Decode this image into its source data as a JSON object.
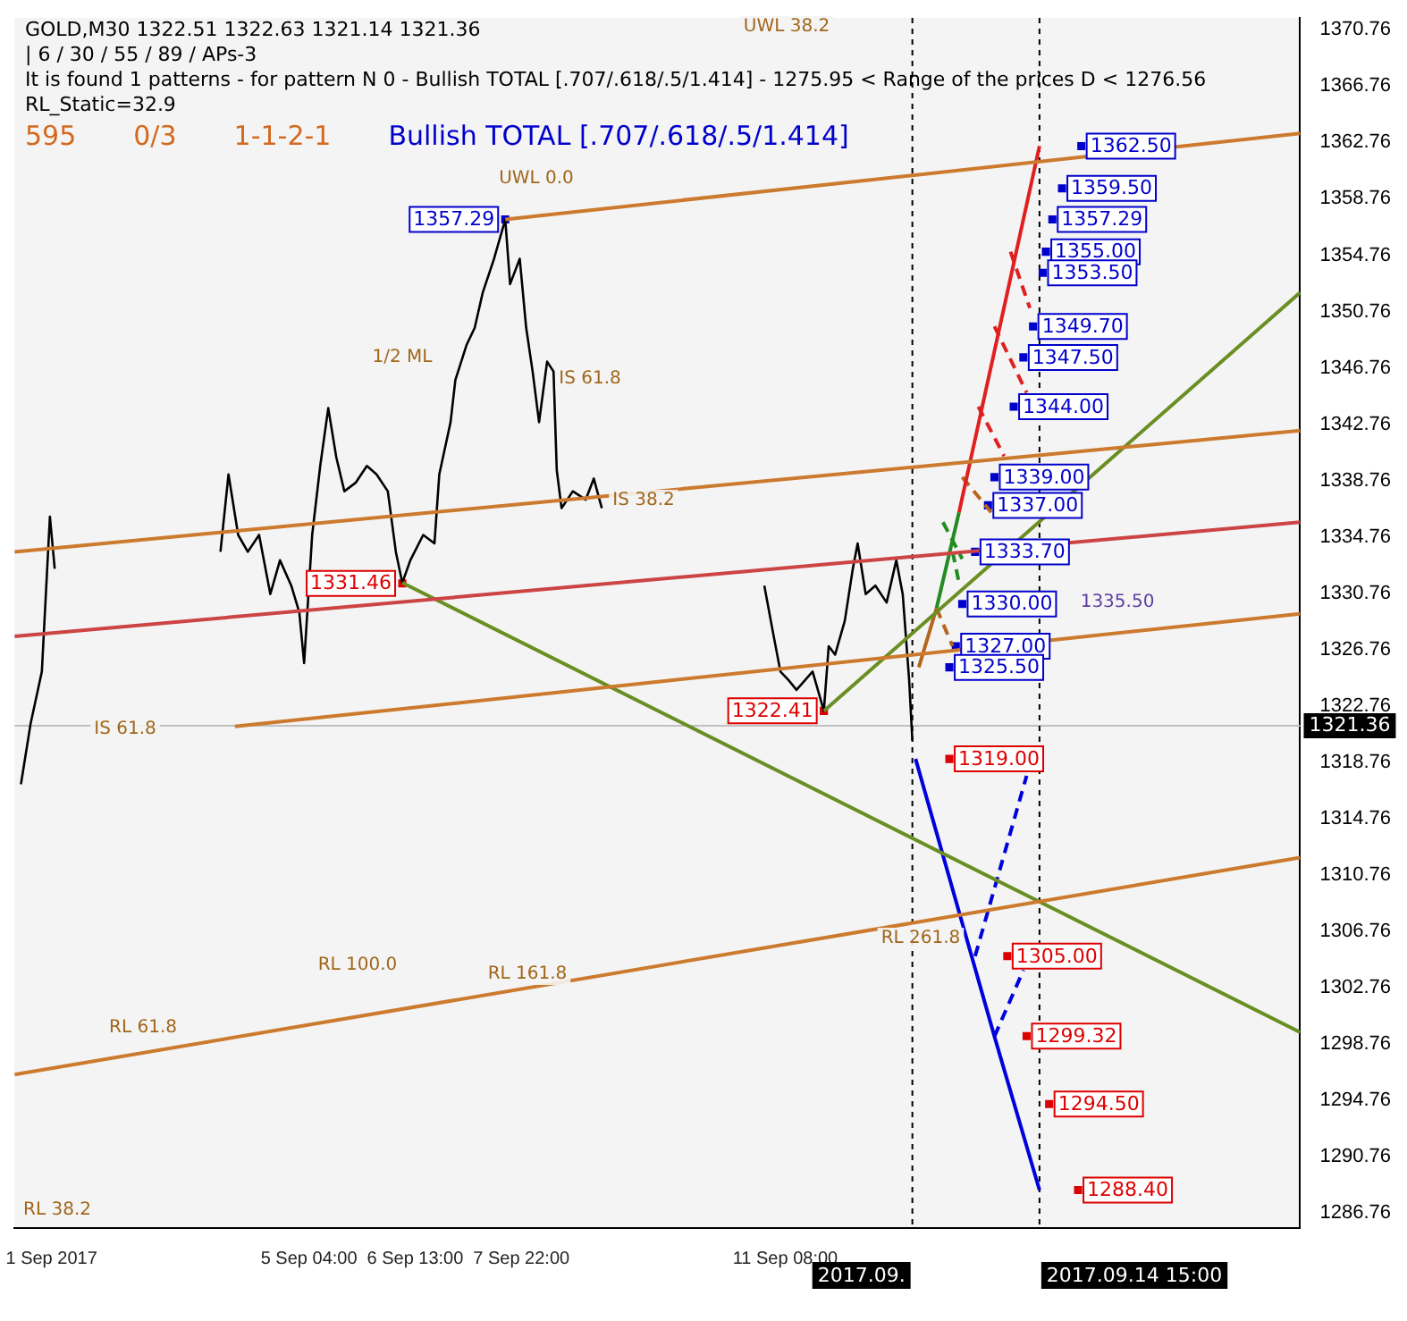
{
  "chart_data": {
    "type": "line",
    "title": "GOLD,M30  1322.51 1322.63 1321.14 1321.36",
    "annotations": [
      "| 6 / 30 / 55 / 89 / APs-3",
      "It is found 1 patterns  -  for pattern N 0 - Bullish TOTAL [.707/.618/.5/1.414] - 1275.95 < Range of the prices D < 1276.56",
      "RL_Static=32.9",
      "595",
      "0/3",
      "1-1-2-1",
      "Bullish TOTAL [.707/.618/.5/1.414]",
      "UWL 0.0",
      "UWL 38.2",
      "1/2 ML",
      "IS 61.8",
      "IS 38.2",
      "IS 61.8",
      "RL 61.8",
      "RL 100.0",
      "RL 161.8",
      "RL 261.8",
      "RL 38.2",
      "1335.50"
    ],
    "xlim": [
      "2017-09-01T08:30",
      "2017-09-18T00:00"
    ],
    "xticks": [
      {
        "value": "2017-09-01T20:00",
        "label": "1 Sep 2017"
      },
      {
        "value": "2017-09-05T04:00",
        "label": "5 Sep 04:00"
      },
      {
        "value": "2017-09-06T13:00",
        "label": "6 Sep 13:00"
      },
      {
        "value": "2017-09-07T22:00",
        "label": "7 Sep 22:00"
      },
      {
        "value": "2017-09-11T08:00",
        "label": "11 Sep 08:00"
      }
    ],
    "ylim": [
      1285.7,
      1371.6
    ],
    "yticks": [
      1286.76,
      1290.76,
      1294.76,
      1298.76,
      1302.76,
      1306.76,
      1310.76,
      1314.76,
      1318.76,
      1322.76,
      1326.76,
      1330.76,
      1334.76,
      1338.76,
      1342.76,
      1346.76,
      1350.76,
      1354.76,
      1358.76,
      1362.76,
      1366.76,
      1370.76
    ],
    "ref_lines": [
      {
        "axis": "y",
        "value": 1321.36,
        "label": "1321.36",
        "color": "#c0c0c0"
      },
      {
        "axis": "x",
        "value": "2017-09-12T23:30",
        "label": "2017.09.",
        "color": "#000000",
        "line_style": "dashed"
      },
      {
        "axis": "x",
        "value": "2017-09-14T15:00",
        "label": "2017.09.14 15:00",
        "color": "#000000",
        "line_style": "dashed"
      }
    ],
    "legend": false,
    "grid": false,
    "series": [
      {
        "type": "line",
        "color": "#cc7a2e",
        "x": [
          "2017-09-01T08:30",
          "2017-09-18T00:00"
        ],
        "values": [
          1296.6,
          1312.0
        ]
      },
      {
        "type": "line",
        "color": "#cc7a2e",
        "x": [
          "2017-09-01T08:30",
          "2017-09-18T00:00"
        ],
        "values": [
          1333.7,
          1342.3
        ]
      },
      {
        "type": "line",
        "color": "#cc7a2e",
        "x": [
          "2017-09-04T05:00",
          "2017-09-18T00:00"
        ],
        "values": [
          1321.3,
          1329.3
        ]
      },
      {
        "type": "line",
        "color": "#cc4444",
        "x": [
          "2017-09-01T08:30",
          "2017-09-18T00:00"
        ],
        "values": [
          1327.7,
          1335.8
        ]
      },
      {
        "type": "line",
        "color": "#cc7a2e",
        "x": [
          "2017-09-07T17:00",
          "2017-09-18T00:00"
        ],
        "values": [
          1357.3,
          1363.4
        ]
      },
      {
        "type": "line",
        "color": "#6b8e23",
        "x": [
          "2017-09-11T20:00",
          "2017-09-18T00:00"
        ],
        "values": [
          1322.4,
          1352.1
        ]
      },
      {
        "type": "line",
        "color": "#6b8e23",
        "x": [
          "2017-09-06T09:00",
          "2017-09-18T00:00"
        ],
        "values": [
          1331.5,
          1299.6
        ]
      },
      {
        "type": "line",
        "color": "#000000",
        "x": [
          "2017-09-01T10:30",
          "2017-09-01T13:30",
          "2017-09-01T17:00",
          "2017-09-01T19:30",
          "2017-09-01T21:00",
          null,
          "2017-09-04T00:30",
          "2017-09-04T03:00",
          "2017-09-04T06:00",
          "2017-09-04T09:00",
          "2017-09-04T12:30",
          "2017-09-04T16:00",
          "2017-09-04T19:00",
          "2017-09-04T22:30",
          "2017-09-05T01:00",
          "2017-09-05T02:30",
          "2017-09-05T05:00",
          "2017-09-05T07:30",
          "2017-09-05T10:00",
          "2017-09-05T12:30",
          "2017-09-05T15:00",
          "2017-09-05T18:30",
          "2017-09-05T22:00",
          "2017-09-06T01:00",
          "2017-09-06T04:30",
          "2017-09-06T07:00",
          "2017-09-06T09:00",
          "2017-09-06T11:30",
          "2017-09-06T15:30",
          "2017-09-06T19:00",
          "2017-09-06T20:30",
          "2017-09-07T00:00",
          "2017-09-07T01:30",
          "2017-09-07T05:00",
          "2017-09-07T07:30",
          "2017-09-07T10:00",
          "2017-09-07T13:30",
          "2017-09-07T17:00",
          "2017-09-07T18:30",
          "2017-09-07T21:30",
          "2017-09-07T23:30",
          "2017-09-08T01:30",
          "2017-09-08T03:30",
          "2017-09-08T06:00",
          "2017-09-08T08:00",
          "2017-09-08T09:00",
          "2017-09-08T10:30",
          "2017-09-08T14:00",
          "2017-09-08T18:00",
          "2017-09-08T20:30",
          "2017-09-08T23:00",
          null,
          "2017-09-11T01:30",
          "2017-09-11T04:00",
          "2017-09-11T06:30",
          "2017-09-11T09:00",
          "2017-09-11T11:30",
          "2017-09-11T16:30",
          "2017-09-11T20:00",
          "2017-09-11T21:30",
          "2017-09-11T23:30",
          "2017-09-12T02:30",
          "2017-09-12T05:00",
          "2017-09-12T06:30",
          "2017-09-12T09:00",
          "2017-09-12T12:00",
          "2017-09-12T15:30",
          "2017-09-12T18:30",
          "2017-09-12T20:30",
          "2017-09-12T22:30",
          "2017-09-12T23:30"
        ],
        "values": [
          1317.2,
          1321.5,
          1325.2,
          1336.2,
          1332.5,
          null,
          1333.7,
          1339.2,
          1334.9,
          1333.7,
          1334.9,
          1330.7,
          1333.1,
          1331.3,
          1329.4,
          1325.8,
          1334.9,
          1339.8,
          1343.9,
          1340.4,
          1338.0,
          1338.6,
          1339.8,
          1339.2,
          1338.0,
          1333.7,
          1331.5,
          1333.1,
          1334.9,
          1334.3,
          1339.2,
          1342.9,
          1345.9,
          1348.4,
          1349.6,
          1352.1,
          1354.5,
          1357.29,
          1352.7,
          1354.5,
          1349.6,
          1346.5,
          1342.9,
          1347.2,
          1346.5,
          1339.5,
          1336.8,
          1338.0,
          1337.4,
          1338.9,
          1336.8,
          null,
          1331.3,
          1328.2,
          1325.2,
          1324.6,
          1323.9,
          1325.2,
          1322.41,
          1327.0,
          1326.4,
          1328.8,
          1332.5,
          1334.3,
          1330.7,
          1331.3,
          1330.1,
          1333.1,
          1330.7,
          1324.6,
          1320.3
        ]
      },
      {
        "type": "line",
        "color": "#b5651d",
        "x": [
          "2017-09-13T01:30",
          "2017-09-13T07:00"
        ],
        "values": [
          1325.5,
          1329.7
        ]
      },
      {
        "type": "line",
        "color": "#228b22",
        "x": [
          "2017-09-13T07:00",
          "2017-09-13T14:00"
        ],
        "values": [
          1329.7,
          1336.5
        ]
      },
      {
        "type": "line",
        "color": "#e02020",
        "x": [
          "2017-09-13T14:00",
          "2017-09-14T15:00"
        ],
        "values": [
          1336.5,
          1362.5
        ]
      },
      {
        "type": "line",
        "color": "#b5651d",
        "line_style": "dashed",
        "x": [
          "2017-09-13T07:00",
          "2017-09-13T12:00",
          null,
          "2017-09-13T15:00",
          "2017-09-14T00:00"
        ],
        "values": [
          1329.7,
          1327.0,
          null,
          1339.0,
          1336.5
        ]
      },
      {
        "type": "line",
        "color": "#228b22",
        "line_style": "dashed",
        "x": [
          "2017-09-13T09:00",
          "2017-09-13T15:00",
          null,
          "2017-09-13T12:00",
          "2017-09-13T14:00"
        ],
        "values": [
          1335.8,
          1333.2,
          null,
          1333.7,
          1331.5
        ]
      },
      {
        "type": "line",
        "color": "#e02020",
        "line_style": "dashed",
        "x": [
          "2017-09-13T20:00",
          "2017-09-14T04:00",
          null,
          "2017-09-14T01:00",
          "2017-09-14T11:00",
          null,
          "2017-09-14T06:00",
          "2017-09-14T12:00"
        ],
        "values": [
          1344.0,
          1340.5,
          null,
          1349.7,
          1345.0,
          null,
          1355.0,
          1351.0
        ]
      },
      {
        "type": "line",
        "color": "#0000dd",
        "x": [
          "2017-09-13T00:30",
          "2017-09-14T01:00",
          "2017-09-14T15:00"
        ],
        "values": [
          1319.0,
          1299.3,
          1288.4
        ]
      },
      {
        "type": "line",
        "color": "#0000dd",
        "line_style": "dashed",
        "x": [
          "2017-09-13T19:00",
          "2017-09-14T11:00",
          null,
          "2017-09-14T01:00",
          "2017-09-14T10:00"
        ],
        "values": [
          1305.0,
          1317.8,
          null,
          1299.3,
          1304.0
        ]
      },
      {
        "type": "scatter",
        "marker": "square",
        "color": "#0000cc",
        "x": [
          "2017-09-07T17:00",
          "2017-09-15T04:00",
          "2017-09-14T22:00",
          "2017-09-14T19:00",
          "2017-09-14T17:00",
          "2017-09-14T16:00",
          "2017-09-14T13:00",
          "2017-09-14T10:00",
          "2017-09-14T07:00",
          "2017-09-14T01:00",
          "2017-09-13T23:00",
          "2017-09-13T19:00",
          "2017-09-13T15:00",
          "2017-09-13T13:00",
          "2017-09-13T11:00"
        ],
        "values": [
          1357.29,
          1362.5,
          1359.5,
          1357.29,
          1355.0,
          1353.5,
          1349.7,
          1347.5,
          1344.0,
          1339.0,
          1337.0,
          1333.7,
          1330.0,
          1327.0,
          1325.5
        ],
        "value_labels": [
          "1357.29",
          "1362.50",
          "1359.50",
          "1357.29",
          "1355.00",
          "1353.50",
          "1349.70",
          "1347.50",
          "1344.00",
          "1339.00",
          "1337.00",
          "1333.70",
          "1330.00",
          "1327.00",
          "1325.50"
        ]
      },
      {
        "type": "scatter",
        "marker": "square",
        "color": "#dd0000",
        "x": [
          "2017-09-06T09:00",
          "2017-09-11T20:00",
          "2017-09-13T11:00",
          "2017-09-14T05:00",
          "2017-09-14T11:00",
          "2017-09-14T18:00",
          "2017-09-15T03:00"
        ],
        "values": [
          1331.46,
          1322.41,
          1319.0,
          1305.0,
          1299.32,
          1294.5,
          1288.4
        ],
        "value_labels": [
          "1331.46",
          "1322.41",
          "1319.00",
          "1305.00",
          "1299.32",
          "1294.50",
          "1288.40"
        ]
      }
    ]
  }
}
